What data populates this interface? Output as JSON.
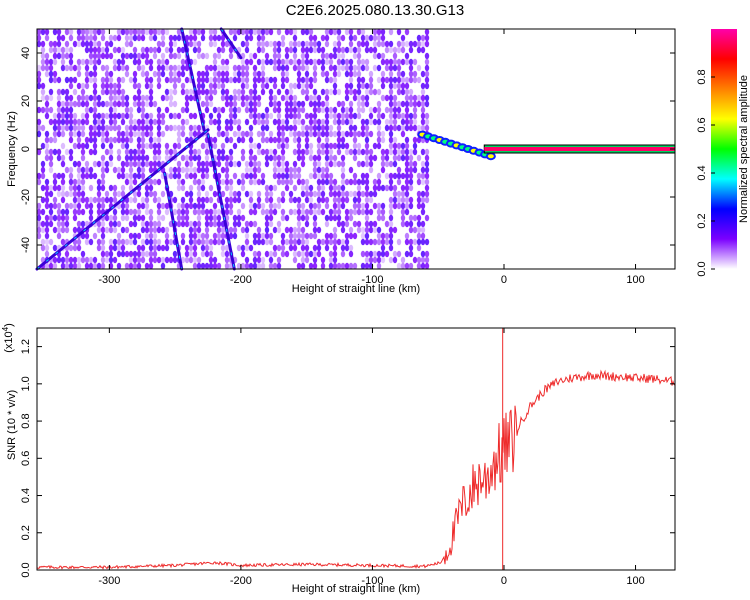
{
  "title": "C2E6.2025.080.13.30.G13",
  "chart_data": [
    {
      "type": "heatmap",
      "xlabel": "Height of straight line (km)",
      "ylabel": "Frequency (Hz)",
      "xlim": [
        -355,
        130
      ],
      "ylim": [
        -50,
        50
      ],
      "xticks": [
        -300,
        -200,
        -100,
        0,
        100
      ],
      "yticks": [
        -40,
        -20,
        0,
        20,
        40
      ],
      "colorbar": {
        "label": "Normalized spectral amplitude",
        "range": [
          0,
          1
        ],
        "ticks": [
          "0.0",
          "0.2",
          "0.4",
          "0.6",
          "0.8"
        ],
        "colormap": [
          "#ffffff",
          "#7b00ff",
          "#0000ff",
          "#00ffff",
          "#00ff00",
          "#ffff00",
          "#ff8000",
          "#ff0000",
          "#ff00aa"
        ]
      },
      "noise_x_range": [
        -355,
        -60
      ],
      "features": {
        "carrier_line": {
          "x_start": -15,
          "x_end": 130,
          "frequency": 0,
          "amplitude": 0.95
        },
        "transition_blob": {
          "x_start": -62,
          "x_end": -10,
          "frequency_start": 6,
          "frequency_end": -3
        },
        "streaks": [
          {
            "x": [
              -245,
              -228
            ],
            "y": [
              50,
              8
            ]
          },
          {
            "x": [
              -225,
              -205
            ],
            "y": [
              6,
              -50
            ]
          },
          {
            "x": [
              -215,
              -200
            ],
            "y": [
              50,
              38
            ]
          },
          {
            "x": [
              -258,
              -245
            ],
            "y": [
              -10,
              -50
            ]
          },
          {
            "x": [
              -355,
              -225
            ],
            "y": [
              -50,
              8
            ]
          }
        ]
      }
    },
    {
      "type": "line",
      "xlabel": "Height of straight line (km)",
      "ylabel": "SNR (10 * v/v)",
      "multiplier": "(x10",
      "multiplier_exp": "4",
      "xlim": [
        -355,
        130
      ],
      "ylim": [
        0,
        1.3
      ],
      "xticks": [
        -300,
        -200,
        -100,
        0,
        100
      ],
      "yticks": [
        "0.0",
        "0.2",
        "0.4",
        "0.6",
        "0.8",
        "1.0",
        "1.2"
      ],
      "series": [
        {
          "color": "#ee2a2a",
          "x": [
            -355,
            -300,
            -250,
            -220,
            -200,
            -150,
            -100,
            -60,
            -48,
            -42,
            -38,
            -34,
            -30,
            -26,
            -22,
            -18,
            -14,
            -10,
            -6,
            -2,
            0,
            5,
            10,
            15,
            20,
            30,
            40,
            50,
            60,
            70,
            80,
            90,
            100,
            110,
            120,
            130
          ],
          "y": [
            0.015,
            0.015,
            0.025,
            0.04,
            0.025,
            0.03,
            0.025,
            0.02,
            0.04,
            0.12,
            0.2,
            0.3,
            0.36,
            0.42,
            0.45,
            0.5,
            0.48,
            0.55,
            0.6,
            0.62,
            0.65,
            0.68,
            0.76,
            0.82,
            0.88,
            0.96,
            1.01,
            1.03,
            1.04,
            1.05,
            1.04,
            1.04,
            1.03,
            1.03,
            1.02,
            1.01
          ]
        }
      ]
    }
  ]
}
